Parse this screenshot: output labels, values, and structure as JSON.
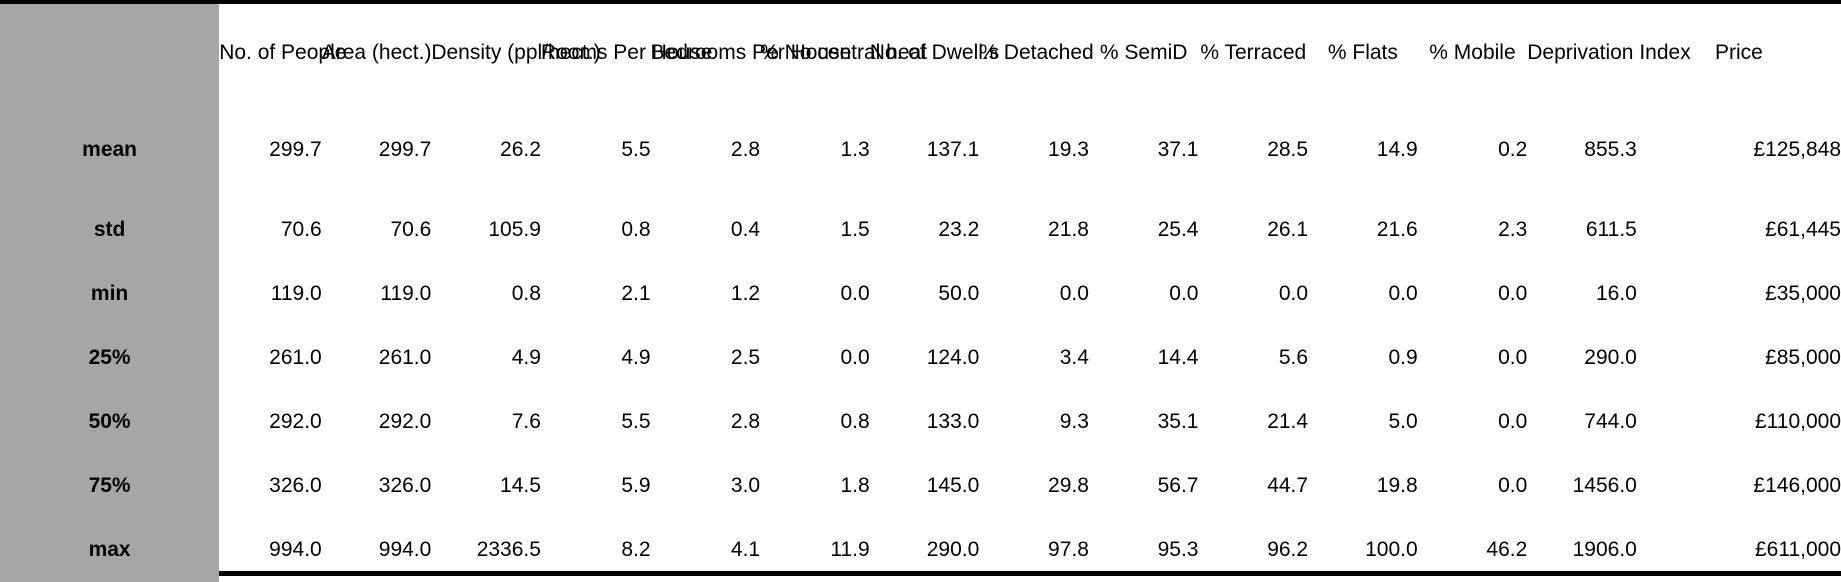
{
  "table": {
    "columns": [
      "No. of People",
      "Area (hect.)",
      "Density (ppl/hect.)",
      "Rooms Per House",
      "Bedrooms Per House",
      "% No central heat",
      "No. of Dwell.s",
      "% Detached",
      "% SemiD",
      "% Terraced",
      "% Flats",
      "% Mobile",
      "Deprivation Index",
      "Price"
    ],
    "rows": [
      {
        "label": "mean",
        "values": [
          "299.7",
          "299.7",
          "26.2",
          "5.5",
          "2.8",
          "1.3",
          "137.1",
          "19.3",
          "37.1",
          "28.5",
          "14.9",
          "0.2",
          "855.3",
          "£125,848"
        ]
      },
      {
        "label": "std",
        "values": [
          "70.6",
          "70.6",
          "105.9",
          "0.8",
          "0.4",
          "1.5",
          "23.2",
          "21.8",
          "25.4",
          "26.1",
          "21.6",
          "2.3",
          "611.5",
          "£61,445"
        ]
      },
      {
        "label": "min",
        "values": [
          "119.0",
          "119.0",
          "0.8",
          "2.1",
          "1.2",
          "0.0",
          "50.0",
          "0.0",
          "0.0",
          "0.0",
          "0.0",
          "0.0",
          "16.0",
          "£35,000"
        ]
      },
      {
        "label": "25%",
        "values": [
          "261.0",
          "261.0",
          "4.9",
          "4.9",
          "2.5",
          "0.0",
          "124.0",
          "3.4",
          "14.4",
          "5.6",
          "0.9",
          "0.0",
          "290.0",
          "£85,000"
        ]
      },
      {
        "label": "50%",
        "values": [
          "292.0",
          "292.0",
          "7.6",
          "5.5",
          "2.8",
          "0.8",
          "133.0",
          "9.3",
          "35.1",
          "21.4",
          "5.0",
          "0.0",
          "744.0",
          "£110,000"
        ]
      },
      {
        "label": "75%",
        "values": [
          "326.0",
          "326.0",
          "14.5",
          "5.9",
          "3.0",
          "1.8",
          "145.0",
          "29.8",
          "56.7",
          "44.7",
          "19.8",
          "0.0",
          "1456.0",
          "£146,000"
        ]
      },
      {
        "label": "max",
        "values": [
          "994.0",
          "994.0",
          "2336.5",
          "8.2",
          "4.1",
          "11.9",
          "290.0",
          "97.8",
          "95.3",
          "96.2",
          "100.0",
          "46.2",
          "1906.0",
          "£611,000"
        ]
      }
    ]
  },
  "colors": {
    "stub_background": "#a6a6a6",
    "border": "#000000",
    "background": "#ffffff"
  }
}
